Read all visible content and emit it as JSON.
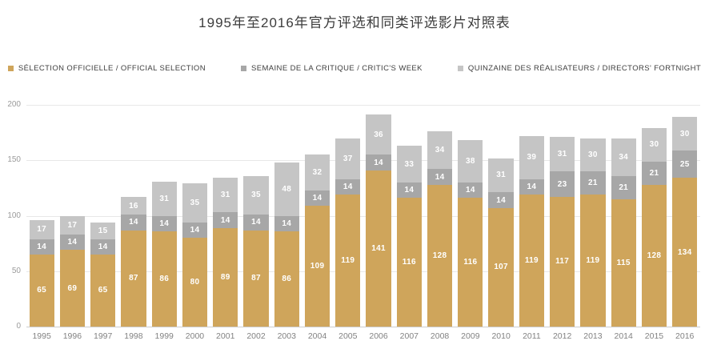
{
  "title": "1995年至2016年官方评选和同类评选影片对照表",
  "legend": [
    {
      "label": "SÉLECTION OFFICIELLE / OFFICIAL SELECTION",
      "color": "#cfa55b"
    },
    {
      "label": "SEMAINE DE LA CRITIQUE / CRITIC'S WEEK",
      "color": "#a7a7a7"
    },
    {
      "label": "QUINZAINE DES RÉALISATEURS / DIRECTORS' FORTNIGHT",
      "color": "#c5c5c5"
    }
  ],
  "chart_data": {
    "type": "bar",
    "stacked": true,
    "title": "1995年至2016年官方评选和同类评选影片对照表",
    "categories": [
      1995,
      1996,
      1997,
      1998,
      1999,
      2000,
      2001,
      2002,
      2003,
      2004,
      2005,
      2006,
      2007,
      2008,
      2009,
      2010,
      2011,
      2012,
      2013,
      2014,
      2015,
      2016
    ],
    "series": [
      {
        "key": "official-selection",
        "name": "SÉLECTION OFFICIELLE / OFFICIAL SELECTION",
        "color": "#cfa55b",
        "values": [
          65,
          69,
          65,
          87,
          86,
          80,
          89,
          87,
          86,
          109,
          119,
          141,
          116,
          128,
          116,
          107,
          119,
          117,
          119,
          115,
          128,
          134
        ]
      },
      {
        "key": "critics-week",
        "name": "SEMAINE DE LA CRITIQUE / CRITIC'S WEEK",
        "color": "#a7a7a7",
        "values": [
          14,
          14,
          14,
          14,
          14,
          14,
          14,
          14,
          14,
          14,
          14,
          14,
          14,
          14,
          14,
          14,
          14,
          23,
          21,
          21,
          21,
          25
        ]
      },
      {
        "key": "directors-fortnight",
        "name": "QUINZAINE DES RÉALISATEURS / DIRECTORS' FORTNIGHT",
        "color": "#c5c5c5",
        "values": [
          17,
          17,
          15,
          16,
          31,
          35,
          31,
          35,
          48,
          32,
          37,
          36,
          33,
          34,
          38,
          31,
          39,
          31,
          30,
          34,
          30,
          30
        ]
      }
    ],
    "xlabel": "",
    "ylabel": "",
    "ylim": [
      0,
      200
    ],
    "yticks": [
      0,
      50,
      100,
      150,
      200
    ],
    "grid": true,
    "legend_position": "top",
    "value_labels": true
  }
}
